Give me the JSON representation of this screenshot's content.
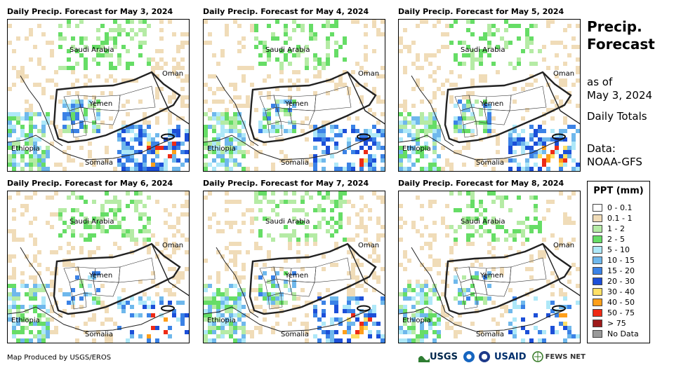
{
  "panels": [
    {
      "title": "Daily Precip. Forecast for May 3, 2024",
      "seed": 3,
      "rain_level": 0.55
    },
    {
      "title": "Daily Precip. Forecast for May 4, 2024",
      "seed": 4,
      "rain_level": 0.45
    },
    {
      "title": "Daily Precip. Forecast for May 5, 2024",
      "seed": 5,
      "rain_level": 0.5
    },
    {
      "title": "Daily Precip. Forecast for May 6, 2024",
      "seed": 6,
      "rain_level": 0.3
    },
    {
      "title": "Daily Precip. Forecast for May 7, 2024",
      "seed": 7,
      "rain_level": 0.45
    },
    {
      "title": "Daily Precip. Forecast for May 8, 2024",
      "seed": 8,
      "rain_level": 0.3
    }
  ],
  "map_labels": {
    "saudi": "Saudi Arabia",
    "oman": "Oman",
    "yemen": "Yemen",
    "ethiopia": "Ethiopia",
    "somalia": "Somalia"
  },
  "side": {
    "title_line1": "Precip.",
    "title_line2": "Forecast",
    "asof_line1": "as of",
    "asof_line2": "May 3, 2024",
    "totals": "Daily Totals",
    "data_line1": "Data:",
    "data_line2": "NOAA-GFS"
  },
  "legend": {
    "title": "PPT (mm)",
    "items": [
      {
        "label": "0 - 0.1",
        "color": "#ffffff"
      },
      {
        "label": "0.1 - 1",
        "color": "#f0dcb8"
      },
      {
        "label": "1 - 2",
        "color": "#b5eba5"
      },
      {
        "label": "2 - 5",
        "color": "#66dd66"
      },
      {
        "label": "5 - 10",
        "color": "#aee8f8"
      },
      {
        "label": "10 - 15",
        "color": "#6fb8ec"
      },
      {
        "label": "15 - 20",
        "color": "#3b82e6"
      },
      {
        "label": "20 - 30",
        "color": "#1c4fd8"
      },
      {
        "label": "30 - 40",
        "color": "#ffe066"
      },
      {
        "label": "40 - 50",
        "color": "#ff9f1a"
      },
      {
        "label": "50 - 75",
        "color": "#ee2b16"
      },
      {
        "label": "> 75",
        "color": "#9e1a1a"
      },
      {
        "label": "No Data",
        "color": "#999999"
      }
    ]
  },
  "footer": "Map Produced by USGS/EROS",
  "logos": {
    "usgs": "USGS",
    "usaid": "USAID",
    "fews": "FEWS NET"
  }
}
